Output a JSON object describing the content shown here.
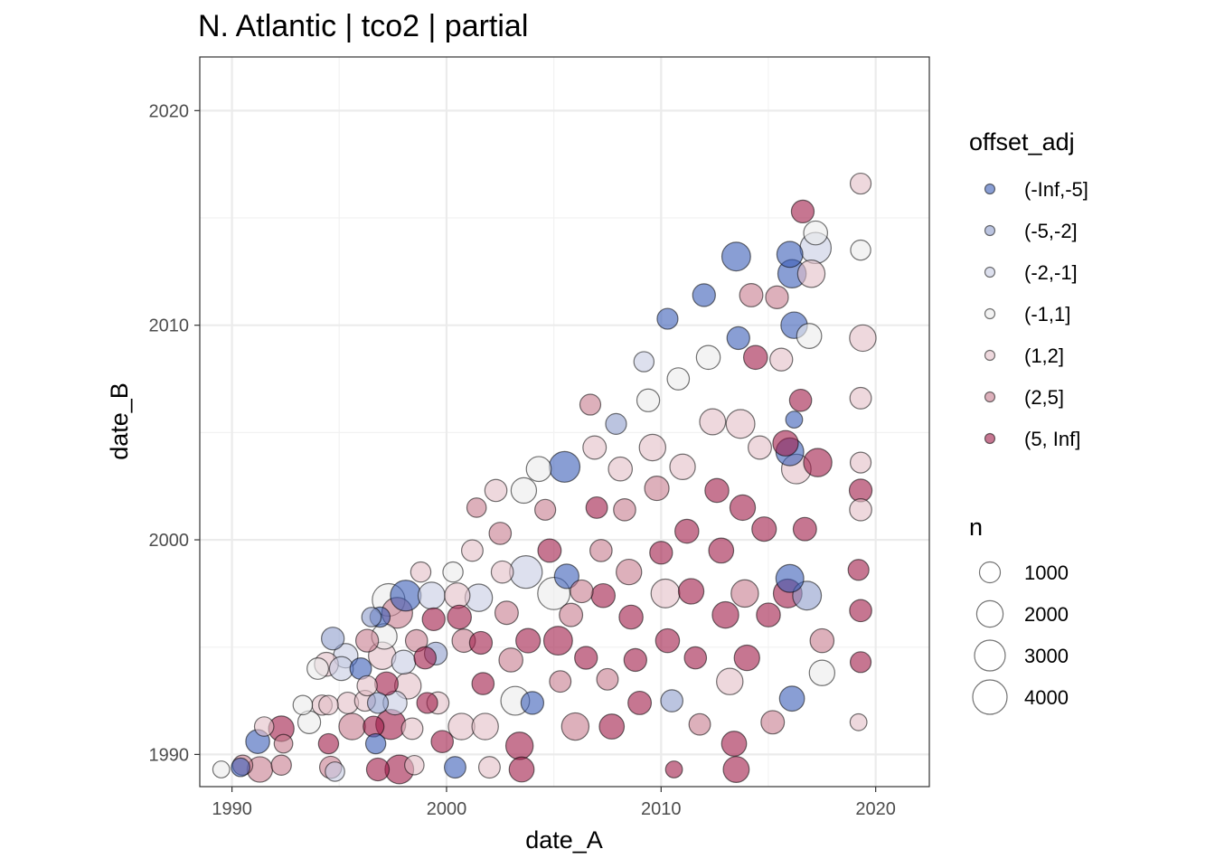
{
  "chart_data": {
    "type": "scatter",
    "title": "N. Atlantic | tco2 | partial",
    "xlabel": "date_A",
    "ylabel": "date_B",
    "xlim": [
      1988.5,
      2022.5
    ],
    "ylim": [
      1988.5,
      2022.5
    ],
    "x_ticks": [
      1990,
      2000,
      2010,
      2020
    ],
    "y_ticks": [
      1990,
      2000,
      2010,
      2020
    ],
    "grid": true,
    "legend_position": "right",
    "color_legend": {
      "title": "offset_adj",
      "entries": [
        {
          "label": "(-Inf,-5]",
          "color": "#3b5db8"
        },
        {
          "label": "(-5,-2]",
          "color": "#8e9dcc"
        },
        {
          "label": "(-2,-1]",
          "color": "#c6cbe2"
        },
        {
          "label": "(-1,1]",
          "color": "#ebebeb"
        },
        {
          "label": "(1,2]",
          "color": "#e2bec6"
        },
        {
          "label": "(2,5]",
          "color": "#c77b8e"
        },
        {
          "label": "(5, Inf]",
          "color": "#a01a48"
        }
      ]
    },
    "size_legend": {
      "title": "n",
      "entries": [
        {
          "label": "1000",
          "value": 1000
        },
        {
          "label": "2000",
          "value": 2000
        },
        {
          "label": "3000",
          "value": 3000
        },
        {
          "label": "4000",
          "value": 4000
        }
      ]
    },
    "points": [
      [
        1989.5,
        1989.3,
        3,
        500
      ],
      [
        1990.4,
        1989.4,
        0,
        700
      ],
      [
        1990.5,
        1989.5,
        5,
        900
      ],
      [
        1991.2,
        1990.6,
        0,
        1500
      ],
      [
        1991.3,
        1989.3,
        5,
        1800
      ],
      [
        1991.5,
        1991.3,
        4,
        800
      ],
      [
        1992.3,
        1991.2,
        6,
        1800
      ],
      [
        1992.3,
        1989.5,
        5,
        900
      ],
      [
        1992.4,
        1990.5,
        5,
        700
      ],
      [
        1993.3,
        1992.3,
        3,
        800
      ],
      [
        1993.6,
        1991.5,
        3,
        1300
      ],
      [
        1994.0,
        1994.0,
        3,
        1100
      ],
      [
        1994.2,
        1992.3,
        4,
        900
      ],
      [
        1994.4,
        1994.2,
        4,
        1500
      ],
      [
        1994.5,
        1992.3,
        4,
        800
      ],
      [
        1994.7,
        1995.4,
        1,
        1300
      ],
      [
        1994.5,
        1990.5,
        6,
        900
      ],
      [
        1994.6,
        1989.4,
        5,
        1200
      ],
      [
        1994.8,
        1989.2,
        2,
        800
      ],
      [
        1995.1,
        1994.0,
        2,
        1500
      ],
      [
        1995.3,
        1994.6,
        2,
        1600
      ],
      [
        1995.4,
        1992.4,
        4,
        1100
      ],
      [
        1995.6,
        1991.3,
        5,
        2000
      ],
      [
        1996.0,
        1994.0,
        0,
        1100
      ],
      [
        1996.2,
        1992.5,
        4,
        1000
      ],
      [
        1996.3,
        1995.3,
        5,
        1300
      ],
      [
        1996.3,
        1993.2,
        4,
        900
      ],
      [
        1996.5,
        1996.4,
        1,
        800
      ],
      [
        1996.6,
        1991.3,
        6,
        1000
      ],
      [
        1996.7,
        1990.5,
        0,
        900
      ],
      [
        1996.8,
        1989.3,
        6,
        1300
      ],
      [
        1996.8,
        1992.4,
        1,
        1000
      ],
      [
        1996.9,
        1996.4,
        0,
        900
      ],
      [
        1997.0,
        1994.6,
        4,
        2200
      ],
      [
        1997.1,
        1995.5,
        3,
        1800
      ],
      [
        1997.2,
        1993.3,
        6,
        1400
      ],
      [
        1997.3,
        1997.2,
        3,
        3500
      ],
      [
        1997.4,
        1991.4,
        6,
        2800
      ],
      [
        1997.6,
        1992.4,
        2,
        1500
      ],
      [
        1997.7,
        1996.6,
        5,
        3000
      ],
      [
        1997.8,
        1989.3,
        6,
        2500
      ],
      [
        1998.0,
        1994.3,
        2,
        1500
      ],
      [
        1998.1,
        1997.4,
        0,
        3000
      ],
      [
        1998.2,
        1993.2,
        4,
        2000
      ],
      [
        1998.4,
        1991.2,
        4,
        1100
      ],
      [
        1998.5,
        1989.5,
        4,
        800
      ],
      [
        1998.6,
        1995.3,
        5,
        1200
      ],
      [
        1998.8,
        1998.5,
        4,
        900
      ],
      [
        1999.0,
        1994.5,
        6,
        1200
      ],
      [
        1999.1,
        1992.4,
        6,
        1000
      ],
      [
        1999.3,
        1997.4,
        2,
        2100
      ],
      [
        1999.4,
        1996.3,
        6,
        1300
      ],
      [
        1999.5,
        1994.7,
        1,
        1300
      ],
      [
        1999.6,
        1992.4,
        4,
        1200
      ],
      [
        1999.8,
        1990.6,
        6,
        1200
      ],
      [
        2000.3,
        1998.5,
        3,
        900
      ],
      [
        2000.5,
        1997.4,
        4,
        1800
      ],
      [
        2000.6,
        1996.4,
        6,
        1500
      ],
      [
        2000.8,
        1995.3,
        5,
        1400
      ],
      [
        2000.7,
        1991.3,
        4,
        2000
      ],
      [
        2000.4,
        1989.4,
        0,
        1100
      ],
      [
        2001.2,
        1999.5,
        4,
        1100
      ],
      [
        2001.4,
        2001.5,
        5,
        800
      ],
      [
        2001.5,
        1997.3,
        2,
        2200
      ],
      [
        2001.6,
        1995.2,
        6,
        1300
      ],
      [
        2001.7,
        1993.3,
        6,
        1200
      ],
      [
        2001.8,
        1991.3,
        4,
        2000
      ],
      [
        2002.0,
        1989.4,
        4,
        1100
      ],
      [
        2002.3,
        2002.3,
        4,
        1200
      ],
      [
        2002.5,
        2000.3,
        5,
        1200
      ],
      [
        2002.6,
        1998.5,
        4,
        1200
      ],
      [
        2002.8,
        1996.6,
        5,
        1400
      ],
      [
        2003.0,
        1994.4,
        5,
        1500
      ],
      [
        2003.2,
        1992.5,
        3,
        2500
      ],
      [
        2003.4,
        1990.4,
        6,
        2200
      ],
      [
        2003.5,
        1989.3,
        6,
        1700
      ],
      [
        2003.6,
        2002.3,
        3,
        1800
      ],
      [
        2003.7,
        1998.5,
        2,
        3500
      ],
      [
        2003.8,
        1995.3,
        6,
        1600
      ],
      [
        2004.0,
        1992.4,
        0,
        1300
      ],
      [
        2004.3,
        2003.3,
        3,
        1700
      ],
      [
        2004.6,
        2001.4,
        5,
        1000
      ],
      [
        2004.8,
        1999.5,
        6,
        1400
      ],
      [
        2005.0,
        1997.5,
        3,
        3400
      ],
      [
        2005.2,
        1995.3,
        6,
        2500
      ],
      [
        2005.3,
        1993.4,
        5,
        1100
      ],
      [
        2005.5,
        2003.4,
        0,
        3000
      ],
      [
        2005.6,
        1998.3,
        0,
        1600
      ],
      [
        2005.8,
        1996.5,
        5,
        1400
      ],
      [
        2006.0,
        1991.3,
        5,
        2200
      ],
      [
        2006.3,
        1997.6,
        5,
        1300
      ],
      [
        2006.5,
        1994.5,
        6,
        1300
      ],
      [
        2006.7,
        2006.3,
        5,
        1000
      ],
      [
        2006.9,
        2004.3,
        4,
        1400
      ],
      [
        2007.0,
        2001.5,
        6,
        1100
      ],
      [
        2007.2,
        1999.5,
        5,
        1200
      ],
      [
        2007.3,
        1997.4,
        6,
        1500
      ],
      [
        2007.5,
        1993.5,
        5,
        1100
      ],
      [
        2007.7,
        1991.3,
        6,
        1700
      ],
      [
        2007.9,
        2005.4,
        1,
        1000
      ],
      [
        2008.1,
        2003.3,
        4,
        1500
      ],
      [
        2008.3,
        2001.4,
        5,
        1200
      ],
      [
        2008.5,
        1998.5,
        5,
        1800
      ],
      [
        2008.6,
        1996.4,
        6,
        1500
      ],
      [
        2008.8,
        1994.4,
        6,
        1300
      ],
      [
        2009.0,
        1992.4,
        6,
        1400
      ],
      [
        2009.2,
        2008.3,
        2,
        900
      ],
      [
        2009.4,
        2006.5,
        3,
        1300
      ],
      [
        2009.6,
        2004.3,
        4,
        2000
      ],
      [
        2009.8,
        2002.4,
        5,
        1600
      ],
      [
        2010.0,
        1999.4,
        6,
        1300
      ],
      [
        2010.2,
        1997.5,
        4,
        2500
      ],
      [
        2010.3,
        1995.3,
        6,
        1500
      ],
      [
        2010.5,
        1992.5,
        1,
        1200
      ],
      [
        2010.6,
        1989.3,
        6,
        500
      ],
      [
        2010.3,
        2010.3,
        0,
        1000
      ],
      [
        2010.8,
        2007.5,
        3,
        1200
      ],
      [
        2011.0,
        2003.4,
        4,
        1800
      ],
      [
        2011.2,
        2000.4,
        6,
        1500
      ],
      [
        2011.4,
        1997.6,
        6,
        1800
      ],
      [
        2011.6,
        1994.5,
        6,
        1200
      ],
      [
        2011.8,
        1991.4,
        5,
        1100
      ],
      [
        2012.0,
        2011.4,
        0,
        1300
      ],
      [
        2012.2,
        2008.5,
        3,
        1500
      ],
      [
        2012.4,
        2005.5,
        4,
        1900
      ],
      [
        2012.6,
        2002.3,
        6,
        1500
      ],
      [
        2012.8,
        1999.5,
        6,
        1700
      ],
      [
        2013.0,
        1996.5,
        6,
        2000
      ],
      [
        2013.2,
        1993.4,
        4,
        2000
      ],
      [
        2013.4,
        1990.5,
        6,
        1700
      ],
      [
        2013.5,
        1989.3,
        6,
        1900
      ],
      [
        2013.5,
        2013.2,
        0,
        2500
      ],
      [
        2013.6,
        2009.4,
        0,
        1300
      ],
      [
        2013.7,
        2005.4,
        4,
        2500
      ],
      [
        2013.8,
        2001.5,
        6,
        1800
      ],
      [
        2013.9,
        1997.5,
        5,
        2200
      ],
      [
        2014.0,
        1994.5,
        6,
        1800
      ],
      [
        2014.2,
        2011.4,
        5,
        1400
      ],
      [
        2014.4,
        2008.5,
        6,
        1500
      ],
      [
        2014.6,
        2004.3,
        4,
        1400
      ],
      [
        2014.8,
        2000.5,
        6,
        1600
      ],
      [
        2015.0,
        1996.5,
        6,
        1500
      ],
      [
        2015.2,
        1991.5,
        5,
        1400
      ],
      [
        2015.4,
        2011.3,
        5,
        1300
      ],
      [
        2015.6,
        2008.4,
        4,
        1300
      ],
      [
        2015.8,
        2004.5,
        6,
        1800
      ],
      [
        2015.9,
        1997.5,
        6,
        2500
      ],
      [
        2016.0,
        2013.3,
        0,
        1900
      ],
      [
        2016.1,
        2012.4,
        0,
        2400
      ],
      [
        2016.2,
        2010.0,
        0,
        2000
      ],
      [
        2016.2,
        2005.6,
        0,
        500
      ],
      [
        2016.0,
        2004.1,
        0,
        2300
      ],
      [
        2016.0,
        1998.2,
        0,
        2300
      ],
      [
        2016.1,
        1992.6,
        0,
        1700
      ],
      [
        2016.3,
        2003.3,
        4,
        2700
      ],
      [
        2016.5,
        2006.5,
        6,
        1200
      ],
      [
        2016.6,
        2015.3,
        6,
        1300
      ],
      [
        2016.7,
        2000.5,
        6,
        1400
      ],
      [
        2016.8,
        1997.4,
        1,
        2500
      ],
      [
        2016.9,
        2009.5,
        3,
        1700
      ],
      [
        2017.0,
        2012.4,
        4,
        2200
      ],
      [
        2017.2,
        2013.6,
        2,
        3100
      ],
      [
        2017.2,
        2014.3,
        3,
        1500
      ],
      [
        2017.3,
        2003.6,
        6,
        2400
      ],
      [
        2017.5,
        1995.3,
        5,
        1500
      ],
      [
        2017.5,
        1993.8,
        3,
        1800
      ],
      [
        2019.3,
        2016.6,
        4,
        1000
      ],
      [
        2019.3,
        2013.5,
        3,
        900
      ],
      [
        2019.4,
        2009.4,
        4,
        2000
      ],
      [
        2019.3,
        2006.6,
        4,
        1100
      ],
      [
        2019.3,
        2003.6,
        4,
        1000
      ],
      [
        2019.3,
        2002.3,
        6,
        1300
      ],
      [
        2019.3,
        2001.4,
        4,
        1200
      ],
      [
        2019.2,
        1998.6,
        6,
        1000
      ],
      [
        2019.3,
        1996.7,
        6,
        1200
      ],
      [
        2019.3,
        1994.3,
        6,
        1000
      ],
      [
        2019.2,
        1991.5,
        4,
        500
      ]
    ]
  }
}
